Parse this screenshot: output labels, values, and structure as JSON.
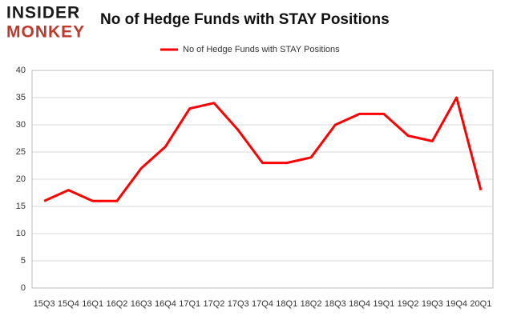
{
  "logo": {
    "top": "INSIDER",
    "bottom": "MONKEY"
  },
  "chart_data": {
    "type": "line",
    "title": "No of Hedge Funds with STAY Positions",
    "categories": [
      "15Q3",
      "15Q4",
      "16Q1",
      "16Q2",
      "16Q3",
      "16Q4",
      "17Q1",
      "17Q2",
      "17Q3",
      "17Q4",
      "18Q1",
      "18Q2",
      "18Q3",
      "18Q4",
      "19Q1",
      "19Q2",
      "19Q3",
      "19Q4",
      "20Q1"
    ],
    "series": [
      {
        "name": "No of Hedge Funds with STAY Positions",
        "color": "#ff0000",
        "values": [
          16,
          18,
          16,
          16,
          22,
          26,
          33,
          34,
          29,
          23,
          23,
          24,
          30,
          32,
          32,
          28,
          27,
          35,
          18
        ]
      }
    ],
    "ylim": [
      0,
      40
    ],
    "yticks": [
      0,
      5,
      10,
      15,
      20,
      25,
      30,
      35,
      40
    ],
    "grid": true,
    "legend": "top"
  }
}
